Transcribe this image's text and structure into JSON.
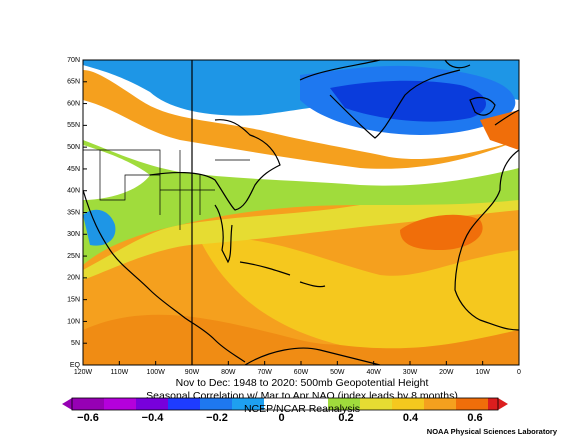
{
  "map": {
    "lat_labels": [
      "70N",
      "65N",
      "60N",
      "55N",
      "50N",
      "45N",
      "40N",
      "35N",
      "30N",
      "25N",
      "20N",
      "15N",
      "10N",
      "5N",
      "EQ"
    ],
    "lon_labels": [
      "120W",
      "110W",
      "100W",
      "90W",
      "80W",
      "70W",
      "60W",
      "50W",
      "40W",
      "30W",
      "20W",
      "10W",
      "0"
    ]
  },
  "title": {
    "line1": "Nov to Dec: 1948 to 2020: 500mb Geopotential Height",
    "line2": "Seasonal Correlation w/ Mar to Apr NAO (index leads by 8 months)",
    "line3": "NCEP/NCAR Reanalysis"
  },
  "colorbar": {
    "labels": [
      "−0.6",
      "−0.4",
      "−0.2",
      "0",
      "0.2",
      "0.4",
      "0.6"
    ]
  },
  "credit": "NOAA Physical Sciences Laboratory"
}
